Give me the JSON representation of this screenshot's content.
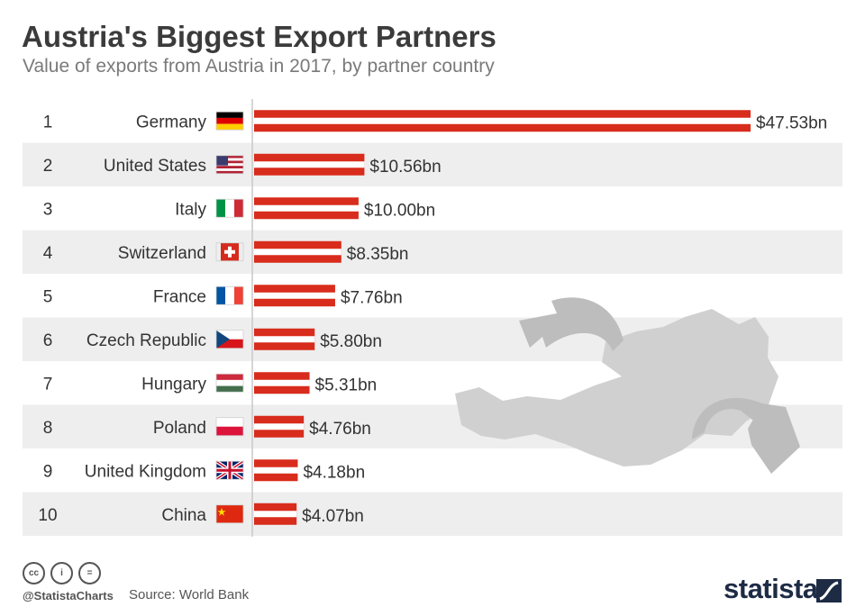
{
  "header": {
    "title": "Austria's Biggest Export Partners",
    "subtitle": "Value of exports from Austria in 2017, by partner country"
  },
  "chart_data": {
    "type": "bar",
    "orientation": "horizontal",
    "title": "Austria's Biggest Export Partners",
    "subtitle": "Value of exports from Austria in 2017, by partner country",
    "ranks": [
      "1",
      "2",
      "3",
      "4",
      "5",
      "6",
      "7",
      "8",
      "9",
      "10"
    ],
    "categories": [
      "Germany",
      "United States",
      "Italy",
      "Switzerland",
      "France",
      "Czech Republic",
      "Hungary",
      "Poland",
      "United Kingdom",
      "China"
    ],
    "values": [
      47.53,
      10.56,
      10.0,
      8.35,
      7.76,
      5.8,
      5.31,
      4.76,
      4.18,
      4.07
    ],
    "value_labels": [
      "$47.53bn",
      "$10.56bn",
      "$10.00bn",
      "$8.35bn",
      "$7.76bn",
      "$5.80bn",
      "$5.31bn",
      "$4.76bn",
      "$4.18bn",
      "$4.07bn"
    ],
    "flags": [
      "germany-flag-icon",
      "usa-flag-icon",
      "italy-flag-icon",
      "switzerland-flag-icon",
      "france-flag-icon",
      "czech-flag-icon",
      "hungary-flag-icon",
      "poland-flag-icon",
      "uk-flag-icon",
      "china-flag-icon"
    ],
    "bar_color": "#d82c1c",
    "stripe_color": "#ffffff",
    "row_alt_color": "#eeeeee",
    "xlim": [
      0,
      47.53
    ],
    "decoration": "austria-map-with-export-arrows"
  },
  "footer": {
    "handle": "@StatistaCharts",
    "source": "Source: World Bank",
    "brand": "statista",
    "license_icons": [
      "cc-icon",
      "attribution-icon",
      "no-derivatives-icon"
    ],
    "license_glyphs": [
      "cc",
      "i",
      "="
    ]
  }
}
